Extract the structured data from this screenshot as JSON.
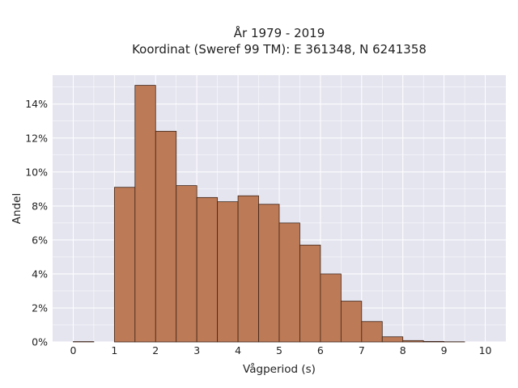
{
  "chart_data": {
    "type": "bar",
    "title": "År 1979 - 2019",
    "subtitle": "Koordinat (Sweref 99 TM): E 361348, N 6241358",
    "xlabel": "Vågperiod (s)",
    "ylabel": "Andel",
    "xlim": [
      -0.5,
      10.5
    ],
    "ylim": [
      0,
      15.7
    ],
    "x_ticks": [
      0,
      1,
      2,
      3,
      4,
      5,
      6,
      7,
      8,
      9,
      10
    ],
    "y_ticks": [
      0,
      2,
      4,
      6,
      8,
      10,
      12,
      14
    ],
    "y_tick_labels": [
      "0%",
      "2%",
      "4%",
      "6%",
      "8%",
      "10%",
      "12%",
      "14%"
    ],
    "bin_width": 0.5,
    "bins": [
      {
        "start": 0.0,
        "value": 0.02
      },
      {
        "start": 0.5,
        "value": 0.0
      },
      {
        "start": 1.0,
        "value": 9.1
      },
      {
        "start": 1.5,
        "value": 15.1
      },
      {
        "start": 2.0,
        "value": 12.4
      },
      {
        "start": 2.5,
        "value": 9.2
      },
      {
        "start": 3.0,
        "value": 8.5
      },
      {
        "start": 3.5,
        "value": 8.25
      },
      {
        "start": 4.0,
        "value": 8.6
      },
      {
        "start": 4.5,
        "value": 8.1
      },
      {
        "start": 5.0,
        "value": 7.0
      },
      {
        "start": 5.5,
        "value": 5.7
      },
      {
        "start": 6.0,
        "value": 4.0
      },
      {
        "start": 6.5,
        "value": 2.4
      },
      {
        "start": 7.0,
        "value": 1.2
      },
      {
        "start": 7.5,
        "value": 0.3
      },
      {
        "start": 8.0,
        "value": 0.08
      },
      {
        "start": 8.5,
        "value": 0.03
      },
      {
        "start": 9.0,
        "value": 0.01
      }
    ],
    "grid": true,
    "colors": {
      "bar_fill": "#bd7a56",
      "bar_edge": "#3d2418",
      "plot_bg": "#e5e5f0",
      "grid": "#ffffff"
    }
  }
}
